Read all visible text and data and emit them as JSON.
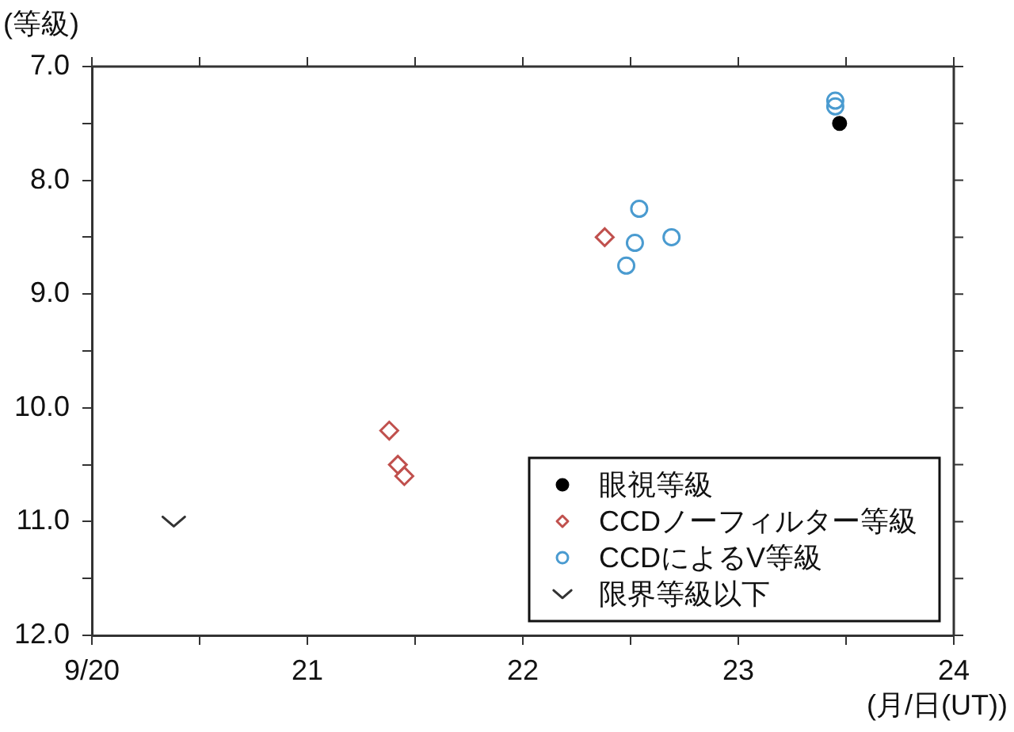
{
  "chart_data": {
    "type": "scatter",
    "ylabel": "(等級)",
    "xlabel": "(月/日(UT))",
    "xlim": [
      20,
      24
    ],
    "xticks": [
      {
        "value": 20,
        "label": "9/20"
      },
      {
        "value": 20.5,
        "label": null
      },
      21,
      {
        "value": 21.5,
        "label": null
      },
      22,
      {
        "value": 22.5,
        "label": null
      },
      23,
      {
        "value": 23.5,
        "label": null
      },
      24
    ],
    "ylim": [
      12,
      7
    ],
    "yticks": [
      {
        "value": 7,
        "label": "7.0"
      },
      {
        "value": 7.5,
        "label": null
      },
      {
        "value": 8,
        "label": "8.0"
      },
      {
        "value": 8.5,
        "label": null
      },
      {
        "value": 9,
        "label": "9.0"
      },
      {
        "value": 9.5,
        "label": null
      },
      {
        "value": 10,
        "label": "10.0"
      },
      {
        "value": 10.5,
        "label": null
      },
      {
        "value": 11,
        "label": "11.0"
      },
      {
        "value": 11.5,
        "label": null
      },
      {
        "value": 12,
        "label": "12.0"
      }
    ],
    "legend": "bottom right",
    "series": [
      {
        "name": "眼視等級",
        "color": "#000000",
        "marker": "circle",
        "x": [
          23.47
        ],
        "values": [
          7.5
        ]
      },
      {
        "name": "CCDノーフィルター等級",
        "color": "#c0504d",
        "marker": "diamond",
        "x": [
          21.38,
          21.42,
          21.45,
          22.38
        ],
        "values": [
          10.2,
          10.5,
          10.6,
          8.5
        ]
      },
      {
        "name": "CCDによるV等級",
        "color": "#4a9bd0",
        "marker": "circle",
        "x": [
          22.48,
          22.52,
          22.54,
          22.69,
          23.45,
          23.45
        ],
        "values": [
          8.75,
          8.55,
          8.25,
          8.5,
          7.3,
          7.35
        ]
      },
      {
        "name": "限界等級以下",
        "color": "#333333",
        "marker": "cross",
        "x": [
          20.38
        ],
        "values": [
          11
        ]
      }
    ]
  }
}
